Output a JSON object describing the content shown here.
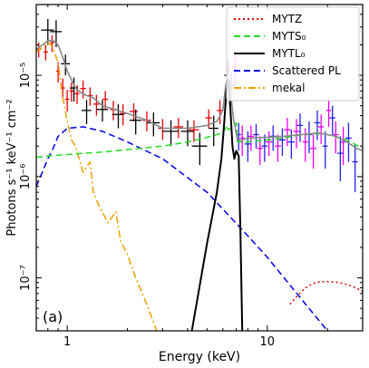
{
  "chart_data": {
    "type": "line",
    "xlabel": "Energy (keV)",
    "ylabel": "Photons s⁻¹ keV⁻¹ cm⁻²",
    "xscale": "log",
    "yscale": "log",
    "xlim": [
      0.7,
      30
    ],
    "ylim": [
      3e-08,
      5e-05
    ],
    "xticks": [
      {
        "value": 1,
        "label": "1"
      },
      {
        "value": 10,
        "label": "10"
      }
    ],
    "yticks": [
      {
        "value": 1e-07,
        "label": "10⁻⁷"
      },
      {
        "value": 1e-06,
        "label": "10⁻⁶"
      },
      {
        "value": 1e-05,
        "label": "10⁻⁵"
      }
    ],
    "panel_label": "(a)",
    "legend": {
      "placement": "top-right",
      "entries": [
        {
          "label": "MYTZ",
          "color": "#dd0000",
          "style": "dotted"
        },
        {
          "label": "MYTS₀",
          "color": "#22dd22",
          "style": "dashed"
        },
        {
          "label": "MYTL₀",
          "color": "#000000",
          "style": "solid"
        },
        {
          "label": "Scattered PL",
          "color": "#0000ee",
          "style": "dashed"
        },
        {
          "label": "mekal",
          "color": "#f0a000",
          "style": "dashdot"
        }
      ]
    },
    "series": [
      {
        "key": "mytz",
        "color": "#dd0000",
        "style": "dotted",
        "x": [
          13,
          14,
          15,
          16,
          17,
          18,
          20,
          22,
          24,
          26,
          28,
          30
        ],
        "y": [
          5.5e-08,
          6.5e-08,
          7.5e-08,
          8.3e-08,
          8.8e-08,
          9.1e-08,
          9.2e-08,
          9.1e-08,
          8.8e-08,
          8.4e-08,
          7.9e-08,
          7.3e-08
        ]
      },
      {
        "key": "myts0",
        "color": "#22dd22",
        "style": "dashed",
        "x": [
          0.7,
          0.8,
          1.0,
          1.5,
          2,
          3,
          4,
          5,
          6,
          6.3,
          6.4,
          6.6,
          7.0,
          7.1,
          8,
          10,
          12,
          15,
          18,
          20,
          25,
          30
        ],
        "y": [
          1.55e-06,
          1.6e-06,
          1.65e-06,
          1.75e-06,
          1.85e-06,
          2e-06,
          2.2e-06,
          2.45e-06,
          2.7e-06,
          3.2e-06,
          2.9e-06,
          3e-06,
          3.4e-06,
          2.2e-06,
          2.2e-06,
          2.3e-06,
          2.4e-06,
          2.6e-06,
          2.65e-06,
          2.6e-06,
          2.3e-06,
          1.9e-06
        ]
      },
      {
        "key": "mytl0",
        "color": "#000000",
        "style": "solid",
        "x": [
          4.2,
          5.0,
          5.6,
          5.9,
          6.1,
          6.25,
          6.4,
          6.55,
          6.7,
          6.85,
          7.0,
          7.2,
          7.35,
          7.5
        ],
        "y": [
          3e-08,
          2.2e-07,
          7e-07,
          1.5e-06,
          3.5e-06,
          7e-06,
          9e-06,
          4.5e-06,
          2e-06,
          1.5e-06,
          1.8e-06,
          1.6e-06,
          2.5e-07,
          3e-08
        ]
      },
      {
        "key": "scattered",
        "color": "#0000ee",
        "style": "dashed",
        "x": [
          0.7,
          0.75,
          0.8,
          0.85,
          0.9,
          1.0,
          1.2,
          1.5,
          2,
          3,
          5,
          8,
          10,
          15,
          20
        ],
        "y": [
          8e-07,
          1.1e-06,
          1.5e-06,
          1.9e-06,
          2.5e-06,
          3e-06,
          3.1e-06,
          2.8e-06,
          2.2e-06,
          1.5e-06,
          7e-07,
          2.6e-07,
          1.6e-07,
          6e-08,
          3e-08
        ]
      },
      {
        "key": "mekal",
        "color": "#f0a000",
        "style": "dashdot",
        "x": [
          0.7,
          0.75,
          0.8,
          0.85,
          0.9,
          0.95,
          1.0,
          1.05,
          1.1,
          1.2,
          1.3,
          1.35,
          1.45,
          1.6,
          1.75,
          1.85,
          2.0,
          2.2,
          2.5,
          2.8
        ],
        "y": [
          1.7e-05,
          1.9e-05,
          2.1e-05,
          1.9e-05,
          1.3e-05,
          6e-06,
          3.5e-06,
          2.3e-06,
          2e-06,
          1.1e-06,
          1.4e-06,
          7e-07,
          5e-07,
          3.5e-07,
          4.5e-07,
          2.3e-07,
          1.7e-07,
          1e-07,
          5.5e-08,
          3e-08
        ]
      },
      {
        "key": "total",
        "color": "#888888",
        "style": "solid",
        "x": [
          0.7,
          0.8,
          0.85,
          0.9,
          0.95,
          1.0,
          1.1,
          1.2,
          1.35,
          1.5,
          2,
          2.5,
          3,
          4,
          5,
          5.6,
          6.0,
          6.2,
          6.4,
          6.6,
          6.8,
          7.1,
          7.5,
          8,
          10,
          12,
          15,
          18,
          20,
          22,
          25,
          28,
          30
        ],
        "y": [
          1.8e-05,
          2.2e-05,
          2.2e-05,
          2e-05,
          1.5e-05,
          1.1e-05,
          7.5e-06,
          6.5e-06,
          6e-06,
          5e-06,
          4.2e-06,
          3.6e-06,
          3e-06,
          3e-06,
          3.2e-06,
          3.5e-06,
          4.5e-06,
          8e-06,
          1.05e-05,
          6e-06,
          3.6e-06,
          2.3e-06,
          2.3e-06,
          2.4e-06,
          2.45e-06,
          2.5e-06,
          2.6e-06,
          2.7e-06,
          2.6e-06,
          2.5e-06,
          2.2e-06,
          1.9e-06,
          1.8e-06
        ]
      }
    ],
    "data_sets": [
      {
        "key": "red",
        "color": "#ee0000",
        "points": [
          [
            0.72,
            1.8e-05,
            0.02,
            3e-06
          ],
          [
            0.78,
            1.7e-05,
            0.02,
            3e-06
          ],
          [
            0.84,
            2.1e-05,
            0.02,
            4e-06
          ],
          [
            0.9,
            1.1e-05,
            0.02,
            2.5e-06
          ],
          [
            0.95,
            7.5e-06,
            0.025,
            1.8e-06
          ],
          [
            1.0,
            5.8e-06,
            0.025,
            1.4e-06
          ],
          [
            1.05,
            7e-06,
            0.025,
            1.5e-06
          ],
          [
            1.12,
            6.6e-06,
            0.03,
            1.4e-06
          ],
          [
            1.2,
            7.4e-06,
            0.04,
            1.5e-06
          ],
          [
            1.3,
            6.3e-06,
            0.04,
            1.3e-06
          ],
          [
            1.4,
            5.2e-06,
            0.05,
            1.2e-06
          ],
          [
            1.55,
            5.8e-06,
            0.05,
            1.2e-06
          ],
          [
            1.7,
            4.6e-06,
            0.06,
            1e-06
          ],
          [
            1.9,
            4.2e-06,
            0.07,
            1e-06
          ],
          [
            2.15,
            4.4e-06,
            0.1,
            9e-07
          ],
          [
            2.5,
            3.6e-06,
            0.12,
            8e-07
          ],
          [
            3.0,
            3e-06,
            0.15,
            7e-07
          ],
          [
            3.6,
            3.1e-06,
            0.2,
            7e-07
          ],
          [
            4.3,
            2.9e-06,
            0.25,
            7e-07
          ],
          [
            5.1,
            3.8e-06,
            0.2,
            8e-07
          ],
          [
            5.8,
            4.5e-06,
            0.2,
            1.2e-06
          ],
          [
            6.4,
            1.1e-05,
            0.1,
            3e-06
          ]
        ]
      },
      {
        "key": "black",
        "color": "#000000",
        "points": [
          [
            0.8,
            2.8e-05,
            0.06,
            8e-06
          ],
          [
            0.88,
            2.7e-05,
            0.06,
            8e-06
          ],
          [
            0.98,
            1.3e-05,
            0.05,
            3e-06
          ],
          [
            1.08,
            7.5e-06,
            0.05,
            2e-06
          ],
          [
            1.25,
            4.5e-06,
            0.07,
            1.2e-06
          ],
          [
            1.5,
            4.6e-06,
            0.1,
            1.1e-06
          ],
          [
            1.8,
            4.1e-06,
            0.12,
            1.1e-06
          ],
          [
            2.2,
            3.6e-06,
            0.15,
            1e-06
          ],
          [
            2.7,
            3.4e-06,
            0.2,
            9e-07
          ],
          [
            3.3,
            2.8e-06,
            0.3,
            8e-07
          ],
          [
            4.0,
            2.8e-06,
            0.3,
            8e-07
          ],
          [
            4.6,
            2e-06,
            0.4,
            7e-07
          ],
          [
            5.4,
            3e-06,
            0.3,
            1e-06
          ],
          [
            6.3,
            1e-05,
            0.2,
            3e-06
          ]
        ]
      },
      {
        "key": "magenta",
        "color": "#ee00ee",
        "points": [
          [
            6.9,
            1.2e-05,
            0.2,
            4e-06
          ],
          [
            7.5,
            2.4e-06,
            0.2,
            8e-07
          ],
          [
            8.3,
            2.5e-06,
            0.3,
            7e-07
          ],
          [
            9.2,
            1.9e-06,
            0.3,
            6e-07
          ],
          [
            10.2,
            2.2e-06,
            0.4,
            6e-07
          ],
          [
            11.3,
            2e-06,
            0.4,
            6e-07
          ],
          [
            12.6,
            2.9e-06,
            0.5,
            9e-07
          ],
          [
            14.0,
            2.8e-06,
            0.5,
            9e-07
          ],
          [
            15.5,
            2.2e-06,
            0.5,
            8e-07
          ],
          [
            17.0,
            1.9e-06,
            0.6,
            7e-07
          ],
          [
            18.6,
            3.1e-06,
            0.6,
            1e-06
          ],
          [
            20.3,
            4.5e-06,
            0.6,
            1.4e-06
          ],
          [
            22.0,
            2.6e-06,
            0.8,
            9e-07
          ],
          [
            24.0,
            2.2e-06,
            0.8,
            9e-07
          ]
        ]
      },
      {
        "key": "blue",
        "color": "#2222ee",
        "points": [
          [
            6.6,
            8e-06,
            0.2,
            3e-06
          ],
          [
            7.2,
            2.6e-06,
            0.2,
            8e-07
          ],
          [
            8.0,
            2.1e-06,
            0.3,
            7e-07
          ],
          [
            8.8,
            2.6e-06,
            0.3,
            7e-07
          ],
          [
            9.7,
            2e-06,
            0.35,
            6e-07
          ],
          [
            10.7,
            2.5e-06,
            0.4,
            7e-07
          ],
          [
            11.9,
            2.3e-06,
            0.45,
            7e-07
          ],
          [
            13.2,
            2.2e-06,
            0.5,
            7e-07
          ],
          [
            14.6,
            3.2e-06,
            0.5,
            1e-06
          ],
          [
            16.2,
            2.6e-06,
            0.6,
            9e-07
          ],
          [
            17.8,
            3.4e-06,
            0.6,
            1.1e-06
          ],
          [
            19.5,
            2e-06,
            0.6,
            8e-07
          ],
          [
            21.2,
            3.8e-06,
            0.7,
            1.2e-06
          ],
          [
            23.2,
            1.7e-06,
            0.8,
            8e-07
          ],
          [
            25.5,
            2.4e-06,
            0.9,
            1e-06
          ],
          [
            27.5,
            1.4e-06,
            0.9,
            7e-07
          ]
        ]
      }
    ]
  }
}
